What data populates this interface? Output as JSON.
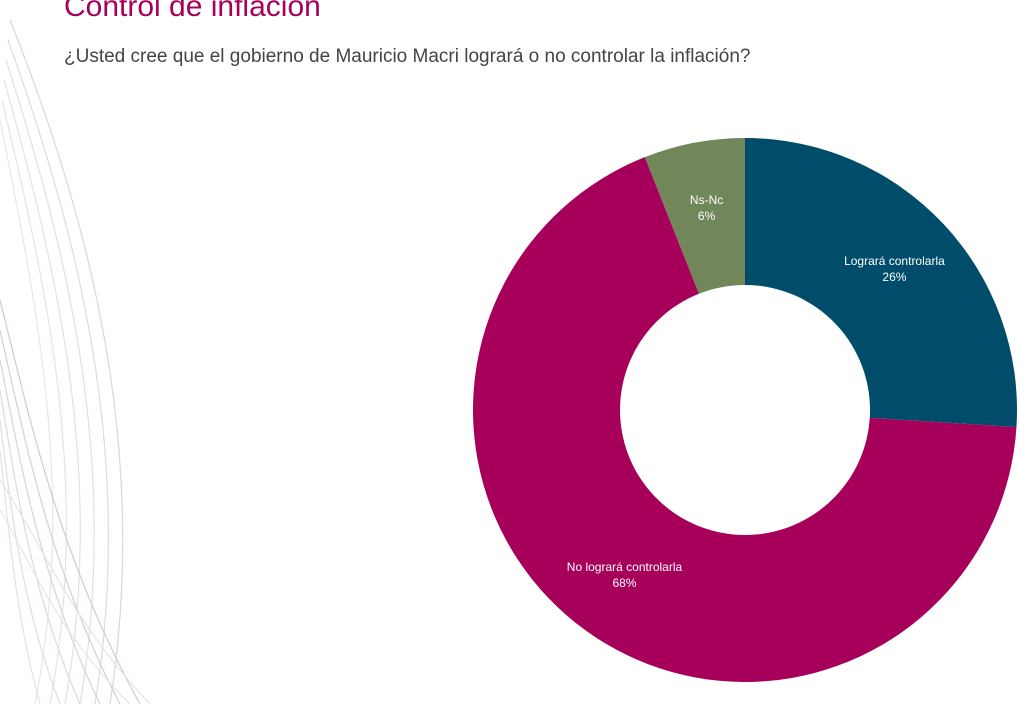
{
  "chart_data": {
    "type": "donut",
    "title": "Control de inflación",
    "subtitle": "¿Usted cree que el gobierno de Mauricio Macri logrará o no controlar la inflación?",
    "categories": [
      "Logrará controlarla",
      "No logrará controlarla",
      "Ns-Nc"
    ],
    "values": [
      26,
      68,
      6
    ],
    "value_labels": [
      "26%",
      "68%",
      "6%"
    ],
    "colors": [
      "#004d6b",
      "#a6005a",
      "#718759"
    ]
  }
}
